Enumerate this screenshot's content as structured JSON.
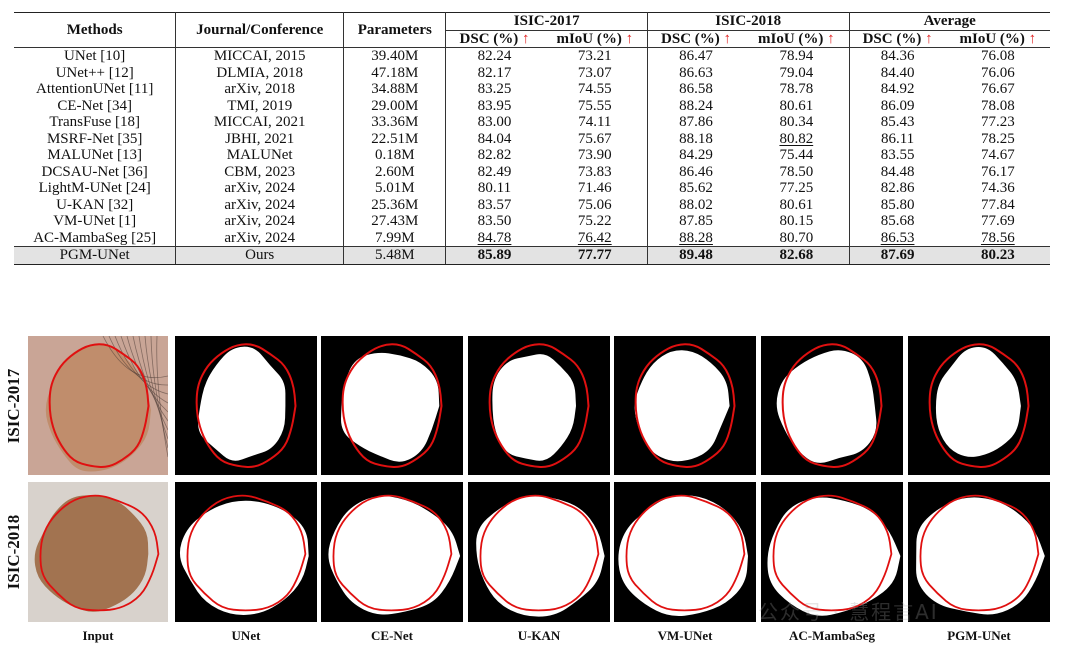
{
  "table": {
    "headers": {
      "methods": "Methods",
      "venue": "Journal/Conference",
      "params": "Parameters",
      "groups": [
        "ISIC-2017",
        "ISIC-2018",
        "Average"
      ],
      "dsc": "DSC (%)",
      "miou": "mIoU (%)",
      "arrow": "↑"
    },
    "rows": [
      {
        "method": "UNet [10]",
        "venue": "MICCAI, 2015",
        "params": "39.40M",
        "v": [
          "82.24",
          "73.21",
          "86.47",
          "78.94",
          "84.36",
          "76.08"
        ]
      },
      {
        "method": "UNet++ [12]",
        "venue": "DLMIA, 2018",
        "params": "47.18M",
        "v": [
          "82.17",
          "73.07",
          "86.63",
          "79.04",
          "84.40",
          "76.06"
        ]
      },
      {
        "method": "AttentionUNet [11]",
        "venue": "arXiv, 2018",
        "params": "34.88M",
        "v": [
          "83.25",
          "74.55",
          "86.58",
          "78.78",
          "84.92",
          "76.67"
        ]
      },
      {
        "method": "CE-Net [34]",
        "venue": "TMI, 2019",
        "params": "29.00M",
        "v": [
          "83.95",
          "75.55",
          "88.24",
          "80.61",
          "86.09",
          "78.08"
        ]
      },
      {
        "method": "TransFuse [18]",
        "venue": "MICCAI, 2021",
        "params": "33.36M",
        "v": [
          "83.00",
          "74.11",
          "87.86",
          "80.34",
          "85.43",
          "77.23"
        ]
      },
      {
        "method": "MSRF-Net [35]",
        "venue": "JBHI, 2021",
        "params": "22.51M",
        "v": [
          "84.04",
          "75.67",
          "88.18",
          "80.82",
          "86.11",
          "78.25"
        ],
        "u": [
          3
        ]
      },
      {
        "method": "MALUNet [13]",
        "venue": "MALUNet",
        "params": "0.18M",
        "v": [
          "82.82",
          "73.90",
          "84.29",
          "75.44",
          "83.55",
          "74.67"
        ]
      },
      {
        "method": "DCSAU-Net [36]",
        "venue": "CBM, 2023",
        "params": "2.60M",
        "v": [
          "82.49",
          "73.83",
          "86.46",
          "78.50",
          "84.48",
          "76.17"
        ]
      },
      {
        "method": "LightM-UNet [24]",
        "venue": "arXiv, 2024",
        "params": "5.01M",
        "v": [
          "80.11",
          "71.46",
          "85.62",
          "77.25",
          "82.86",
          "74.36"
        ]
      },
      {
        "method": "U-KAN [32]",
        "venue": "arXiv, 2024",
        "params": "25.36M",
        "v": [
          "83.57",
          "75.06",
          "88.02",
          "80.61",
          "85.80",
          "77.84"
        ]
      },
      {
        "method": "VM-UNet [1]",
        "venue": "arXiv, 2024",
        "params": "27.43M",
        "v": [
          "83.50",
          "75.22",
          "87.85",
          "80.15",
          "85.68",
          "77.69"
        ]
      },
      {
        "method": "AC-MambaSeg [25]",
        "venue": "arXiv, 2024",
        "params": "7.99M",
        "v": [
          "84.78",
          "76.42",
          "88.28",
          "80.70",
          "86.53",
          "78.56"
        ],
        "u": [
          0,
          1,
          2,
          4,
          5
        ]
      }
    ],
    "ours": {
      "method": "PGM-UNet",
      "venue": "Ours",
      "params": "5.48M",
      "v": [
        "85.89",
        "77.77",
        "89.48",
        "82.68",
        "87.69",
        "80.23"
      ]
    }
  },
  "figure": {
    "rows": [
      "ISIC-2017",
      "ISIC-2018"
    ],
    "columns": [
      "Input",
      "UNet",
      "CE-Net",
      "U-KAN",
      "VM-UNet",
      "AC-MambaSeg",
      "PGM-UNet"
    ]
  },
  "watermark": "公众号 · 慧程言AI",
  "colors": {
    "accent_arrow": "#e0201f",
    "contour": "#e01010",
    "highlight_row": "#e3e3e3"
  }
}
